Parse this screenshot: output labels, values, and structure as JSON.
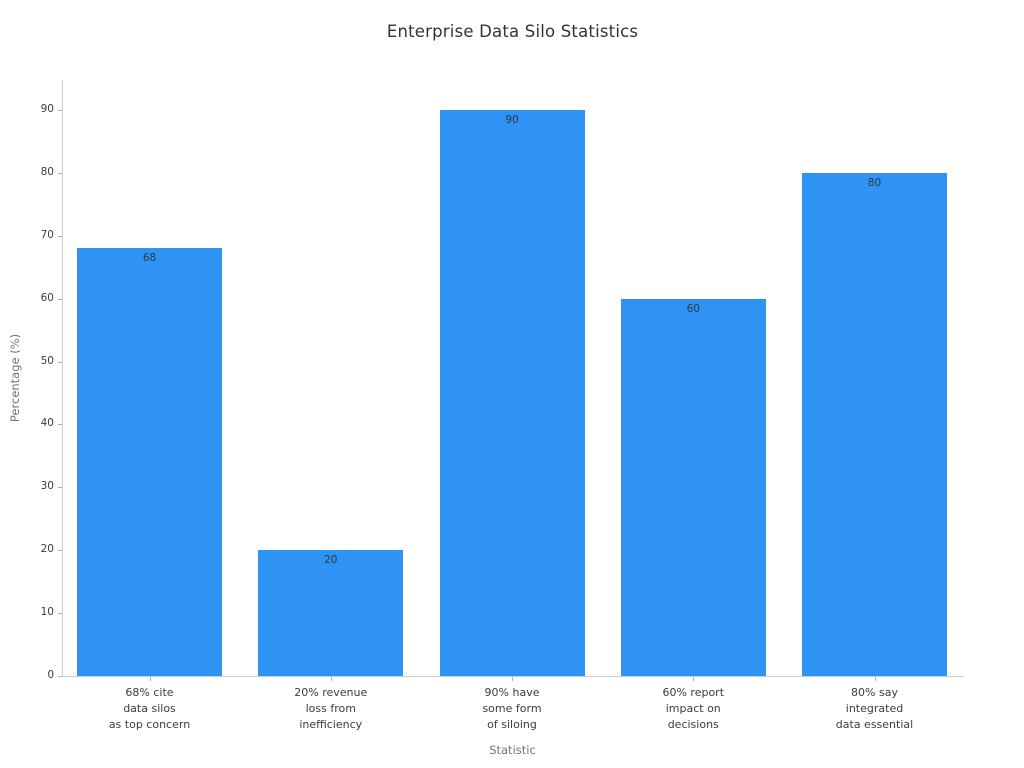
{
  "chart_data": {
    "type": "bar",
    "title": "Enterprise Data Silo Statistics",
    "xlabel": "Statistic",
    "ylabel": "Percentage (%)",
    "categories": [
      [
        "68% cite",
        "data silos",
        "as top concern"
      ],
      [
        "20% revenue",
        "loss from",
        "inefficiency"
      ],
      [
        "90% have",
        "some form",
        "of siloing"
      ],
      [
        "60% report",
        "impact on",
        "decisions"
      ],
      [
        "80% say",
        "integrated",
        "data essential"
      ]
    ],
    "values": [
      68,
      20,
      90,
      60,
      80
    ],
    "bar_value_labels": [
      "68",
      "20",
      "90",
      "60",
      "80"
    ],
    "yticks": [
      0,
      10,
      20,
      30,
      40,
      50,
      60,
      70,
      80,
      90
    ],
    "ylim": [
      0,
      94.5
    ],
    "grid": false,
    "legend": null,
    "colors": {
      "bar": "#2e93f5",
      "title_text": "#333333",
      "tick_text": "#3c3c3c",
      "axis_label_text": "#757575",
      "bar_value_text": "#2e3842",
      "spine": "#cccccc",
      "tick_mark": "#b3b3b3",
      "background": "#ffffff"
    }
  }
}
